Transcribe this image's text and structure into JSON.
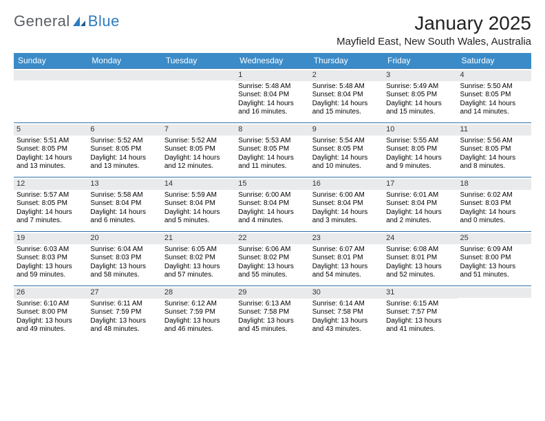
{
  "brand": {
    "general": "General",
    "blue": "Blue"
  },
  "title": {
    "month": "January 2025",
    "location": "Mayfield East, New South Wales, Australia"
  },
  "colors": {
    "header_bg": "#3b8bc8",
    "header_text": "#ffffff",
    "daynum_bg": "#e9eaeb",
    "week_border": "#2f6fa8",
    "logo_blue": "#2f7bbf",
    "logo_gray": "#5a5f64"
  },
  "day_names": [
    "Sunday",
    "Monday",
    "Tuesday",
    "Wednesday",
    "Thursday",
    "Friday",
    "Saturday"
  ],
  "weeks": [
    [
      {
        "empty": true
      },
      {
        "empty": true
      },
      {
        "empty": true
      },
      {
        "n": "1",
        "sunrise": "5:48 AM",
        "sunset": "8:04 PM",
        "dl1": "14 hours",
        "dl2": "and 16 minutes."
      },
      {
        "n": "2",
        "sunrise": "5:48 AM",
        "sunset": "8:04 PM",
        "dl1": "14 hours",
        "dl2": "and 15 minutes."
      },
      {
        "n": "3",
        "sunrise": "5:49 AM",
        "sunset": "8:05 PM",
        "dl1": "14 hours",
        "dl2": "and 15 minutes."
      },
      {
        "n": "4",
        "sunrise": "5:50 AM",
        "sunset": "8:05 PM",
        "dl1": "14 hours",
        "dl2": "and 14 minutes."
      }
    ],
    [
      {
        "n": "5",
        "sunrise": "5:51 AM",
        "sunset": "8:05 PM",
        "dl1": "14 hours",
        "dl2": "and 13 minutes."
      },
      {
        "n": "6",
        "sunrise": "5:52 AM",
        "sunset": "8:05 PM",
        "dl1": "14 hours",
        "dl2": "and 13 minutes."
      },
      {
        "n": "7",
        "sunrise": "5:52 AM",
        "sunset": "8:05 PM",
        "dl1": "14 hours",
        "dl2": "and 12 minutes."
      },
      {
        "n": "8",
        "sunrise": "5:53 AM",
        "sunset": "8:05 PM",
        "dl1": "14 hours",
        "dl2": "and 11 minutes."
      },
      {
        "n": "9",
        "sunrise": "5:54 AM",
        "sunset": "8:05 PM",
        "dl1": "14 hours",
        "dl2": "and 10 minutes."
      },
      {
        "n": "10",
        "sunrise": "5:55 AM",
        "sunset": "8:05 PM",
        "dl1": "14 hours",
        "dl2": "and 9 minutes."
      },
      {
        "n": "11",
        "sunrise": "5:56 AM",
        "sunset": "8:05 PM",
        "dl1": "14 hours",
        "dl2": "and 8 minutes."
      }
    ],
    [
      {
        "n": "12",
        "sunrise": "5:57 AM",
        "sunset": "8:05 PM",
        "dl1": "14 hours",
        "dl2": "and 7 minutes."
      },
      {
        "n": "13",
        "sunrise": "5:58 AM",
        "sunset": "8:04 PM",
        "dl1": "14 hours",
        "dl2": "and 6 minutes."
      },
      {
        "n": "14",
        "sunrise": "5:59 AM",
        "sunset": "8:04 PM",
        "dl1": "14 hours",
        "dl2": "and 5 minutes."
      },
      {
        "n": "15",
        "sunrise": "6:00 AM",
        "sunset": "8:04 PM",
        "dl1": "14 hours",
        "dl2": "and 4 minutes."
      },
      {
        "n": "16",
        "sunrise": "6:00 AM",
        "sunset": "8:04 PM",
        "dl1": "14 hours",
        "dl2": "and 3 minutes."
      },
      {
        "n": "17",
        "sunrise": "6:01 AM",
        "sunset": "8:04 PM",
        "dl1": "14 hours",
        "dl2": "and 2 minutes."
      },
      {
        "n": "18",
        "sunrise": "6:02 AM",
        "sunset": "8:03 PM",
        "dl1": "14 hours",
        "dl2": "and 0 minutes."
      }
    ],
    [
      {
        "n": "19",
        "sunrise": "6:03 AM",
        "sunset": "8:03 PM",
        "dl1": "13 hours",
        "dl2": "and 59 minutes."
      },
      {
        "n": "20",
        "sunrise": "6:04 AM",
        "sunset": "8:03 PM",
        "dl1": "13 hours",
        "dl2": "and 58 minutes."
      },
      {
        "n": "21",
        "sunrise": "6:05 AM",
        "sunset": "8:02 PM",
        "dl1": "13 hours",
        "dl2": "and 57 minutes."
      },
      {
        "n": "22",
        "sunrise": "6:06 AM",
        "sunset": "8:02 PM",
        "dl1": "13 hours",
        "dl2": "and 55 minutes."
      },
      {
        "n": "23",
        "sunrise": "6:07 AM",
        "sunset": "8:01 PM",
        "dl1": "13 hours",
        "dl2": "and 54 minutes."
      },
      {
        "n": "24",
        "sunrise": "6:08 AM",
        "sunset": "8:01 PM",
        "dl1": "13 hours",
        "dl2": "and 52 minutes."
      },
      {
        "n": "25",
        "sunrise": "6:09 AM",
        "sunset": "8:00 PM",
        "dl1": "13 hours",
        "dl2": "and 51 minutes."
      }
    ],
    [
      {
        "n": "26",
        "sunrise": "6:10 AM",
        "sunset": "8:00 PM",
        "dl1": "13 hours",
        "dl2": "and 49 minutes."
      },
      {
        "n": "27",
        "sunrise": "6:11 AM",
        "sunset": "7:59 PM",
        "dl1": "13 hours",
        "dl2": "and 48 minutes."
      },
      {
        "n": "28",
        "sunrise": "6:12 AM",
        "sunset": "7:59 PM",
        "dl1": "13 hours",
        "dl2": "and 46 minutes."
      },
      {
        "n": "29",
        "sunrise": "6:13 AM",
        "sunset": "7:58 PM",
        "dl1": "13 hours",
        "dl2": "and 45 minutes."
      },
      {
        "n": "30",
        "sunrise": "6:14 AM",
        "sunset": "7:58 PM",
        "dl1": "13 hours",
        "dl2": "and 43 minutes."
      },
      {
        "n": "31",
        "sunrise": "6:15 AM",
        "sunset": "7:57 PM",
        "dl1": "13 hours",
        "dl2": "and 41 minutes."
      },
      {
        "empty": true
      }
    ]
  ],
  "labels": {
    "sunrise": "Sunrise:",
    "sunset": "Sunset:",
    "daylight": "Daylight:"
  }
}
